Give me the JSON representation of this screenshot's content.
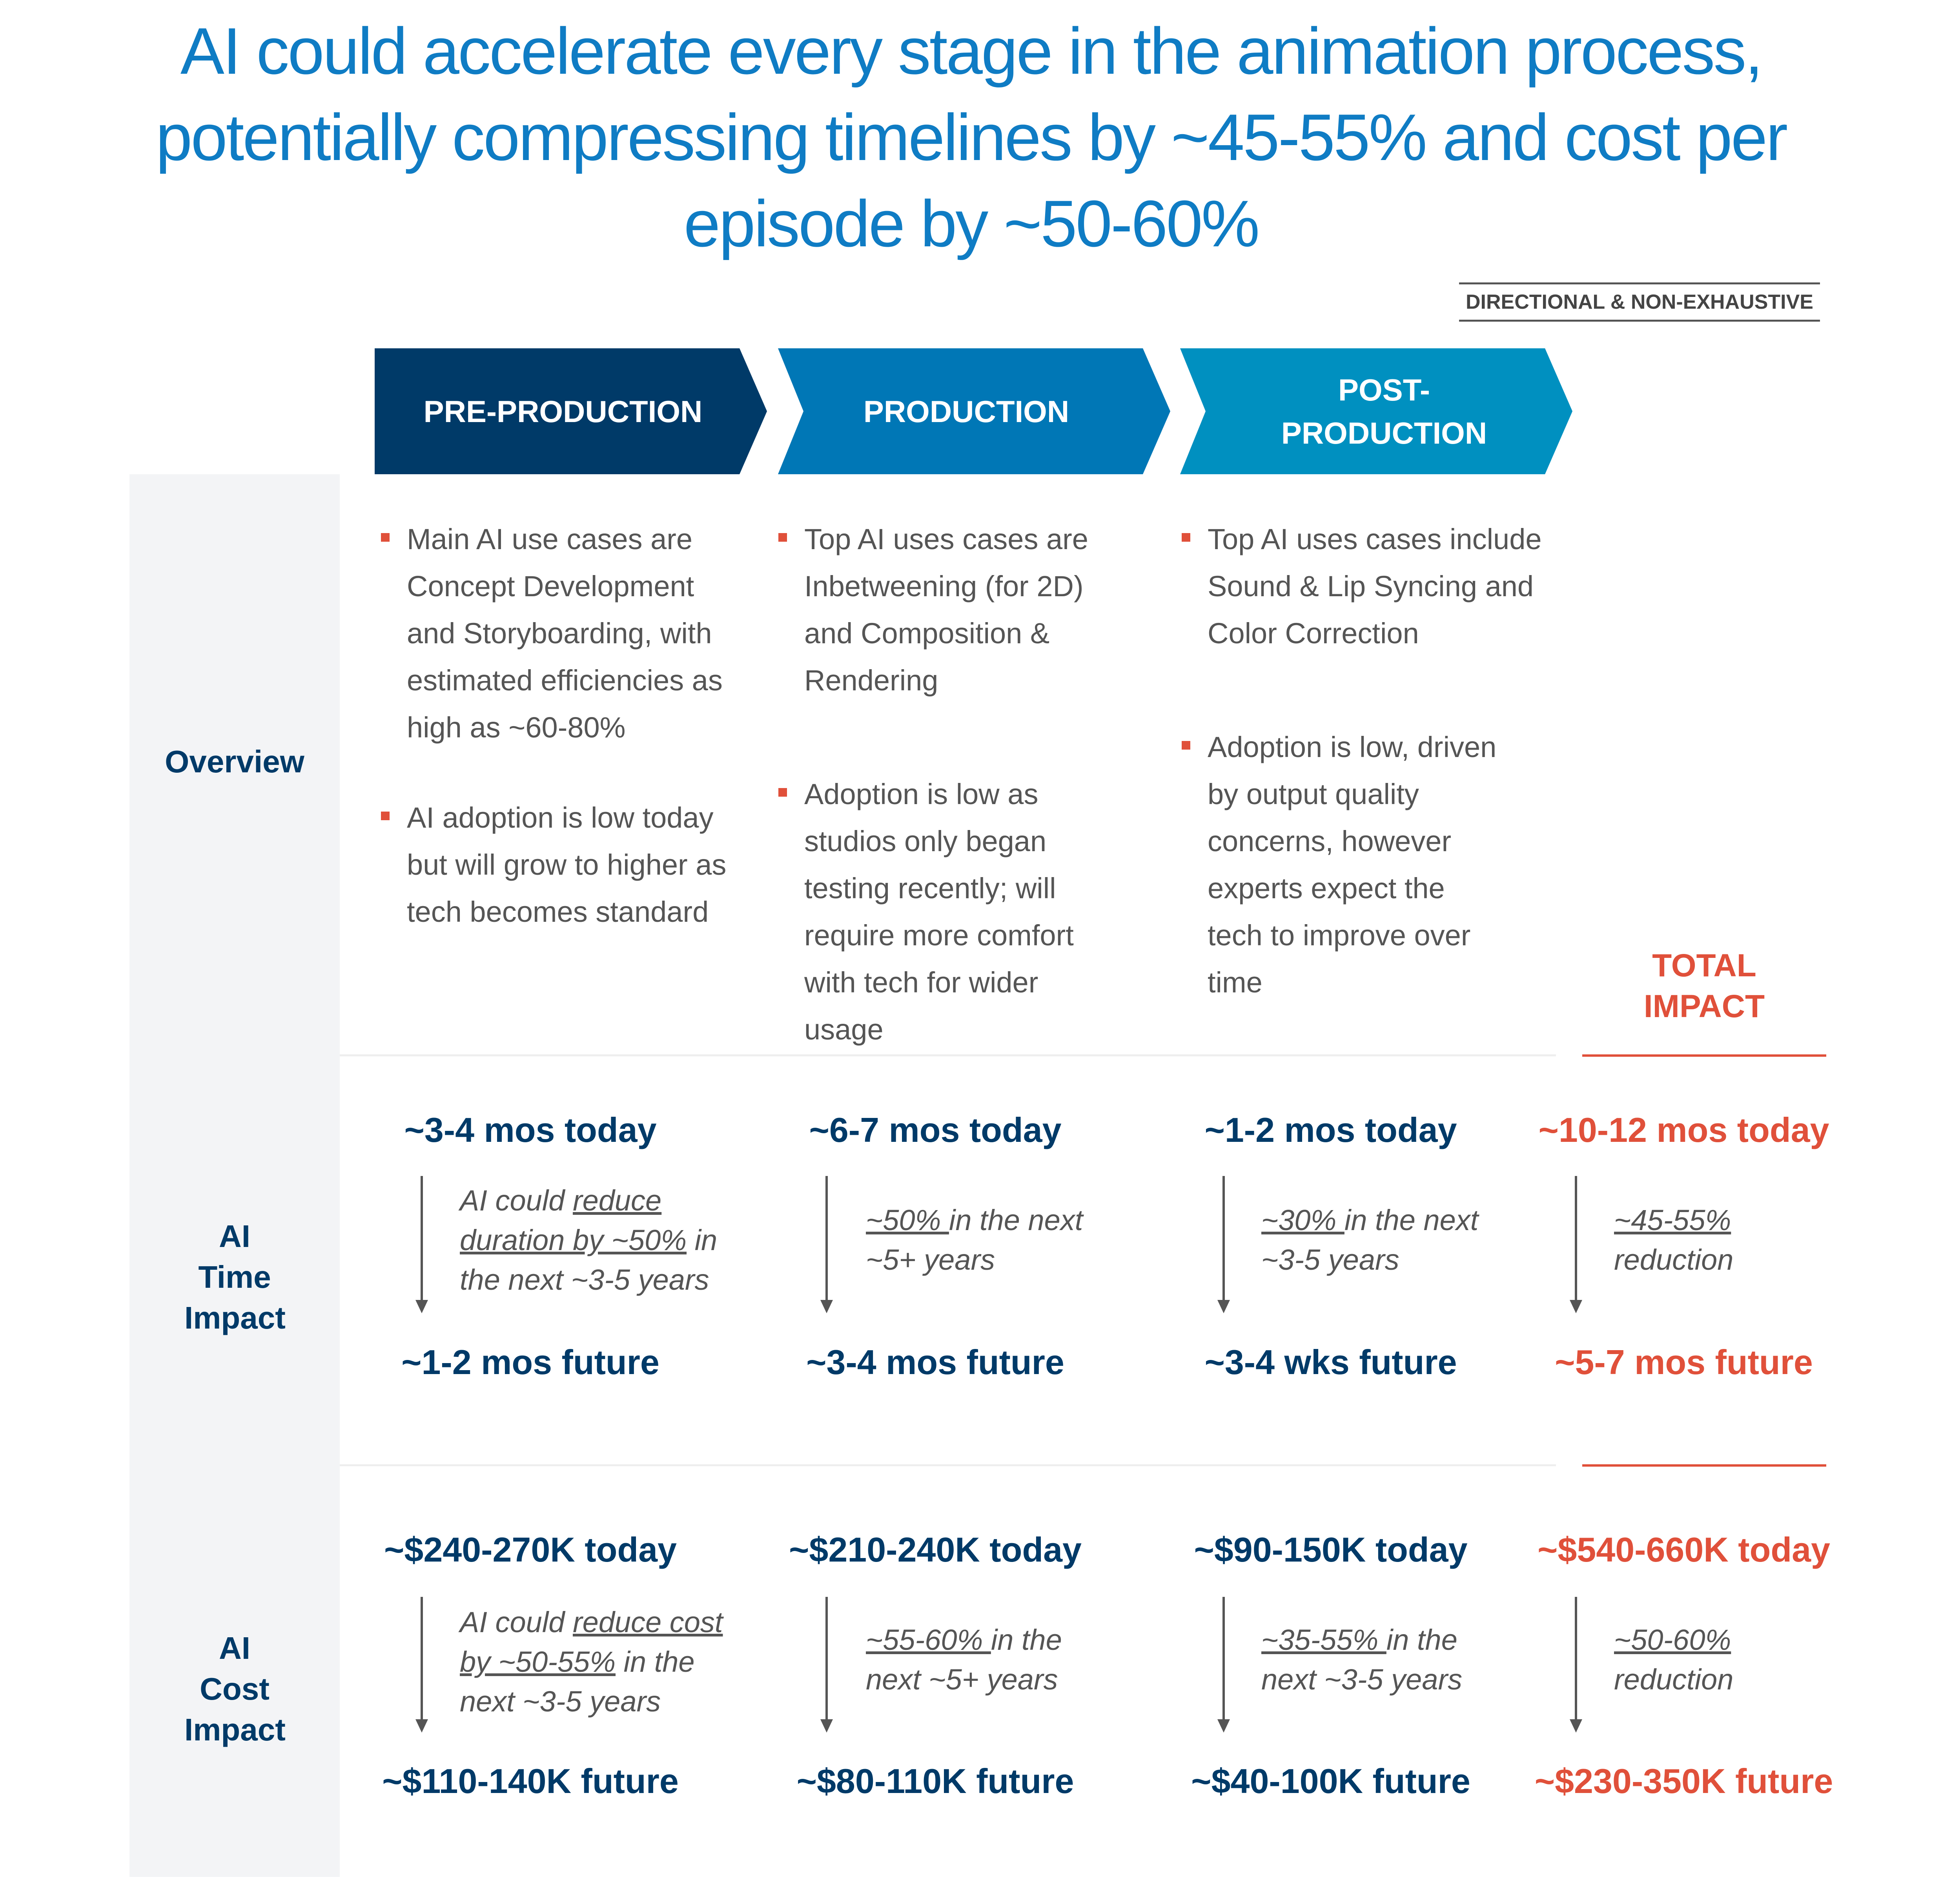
{
  "title": "AI could accelerate every stage in the animation process, potentially compressing timelines by ~45-55% and cost per episode by ~50-60%",
  "tag": "DIRECTIONAL & NON-EXHAUSTIVE",
  "colors": {
    "pre": "#003a68",
    "production": "#0077b6",
    "post": "#0090c0",
    "accent": "#e0503a",
    "title": "#0f7cc4"
  },
  "rows": {
    "overview": "Overview",
    "time": "AI Time Impact",
    "cost": "AI Cost Impact"
  },
  "total_label": "TOTAL IMPACT",
  "stages": [
    {
      "name": "PRE-PRODUCTION",
      "bullets": [
        "Main AI use cases are Concept Development and Storyboarding, with estimated efficiencies as high as ~60-80%",
        "AI adoption is low today but will grow to higher as tech becomes standard"
      ],
      "time": {
        "today": "~3-4 mos today",
        "note_pre": "AI could ",
        "note_u": "reduce duration by ~50%",
        "note_post": " in the next ~3-5 years",
        "future": "~1-2 mos future"
      },
      "cost": {
        "today": "~$240-270K today",
        "note_pre": "AI could ",
        "note_u": "reduce cost by ~50-55%",
        "note_post": " in the next ~3-5 years",
        "future": "~$110-140K future"
      }
    },
    {
      "name": "PRODUCTION",
      "bullets": [
        "Top AI uses cases are Inbetweening (for 2D) and Composition & Rendering",
        "Adoption is low as studios only began testing recently; will require more comfort with tech for wider usage"
      ],
      "time": {
        "today": "~6-7 mos today",
        "note_pre": "",
        "note_u": "~50% ",
        "note_post": "in the next ~5+ years",
        "future": "~3-4 mos future"
      },
      "cost": {
        "today": "~$210-240K today",
        "note_pre": "",
        "note_u": "~55-60% ",
        "note_post": "in the next ~5+ years",
        "future": "~$80-110K future"
      }
    },
    {
      "name": "POST-PRODUCTION",
      "bullets": [
        "Top AI uses cases include Sound & Lip Syncing and Color Correction",
        "Adoption is low, driven by output quality concerns, however experts expect the tech to improve over time"
      ],
      "time": {
        "today": "~1-2 mos today",
        "note_pre": "",
        "note_u": "~30% ",
        "note_post": "in the next ~3-5 years",
        "future": "~3-4 wks future"
      },
      "cost": {
        "today": "~$90-150K today",
        "note_pre": "",
        "note_u": "~35-55% ",
        "note_post": "in the next ~3-5 years",
        "future": "~$40-100K future"
      }
    },
    {
      "name": "TOTAL",
      "time": {
        "today": "~10-12 mos today",
        "note_pre": "",
        "note_u": "~45-55%",
        "note_post": " reduction",
        "future": "~5-7 mos future"
      },
      "cost": {
        "today": "~$540-660K today",
        "note_pre": "",
        "note_u": "~50-60%",
        "note_post": " reduction",
        "future": "~$230-350K future"
      }
    }
  ]
}
